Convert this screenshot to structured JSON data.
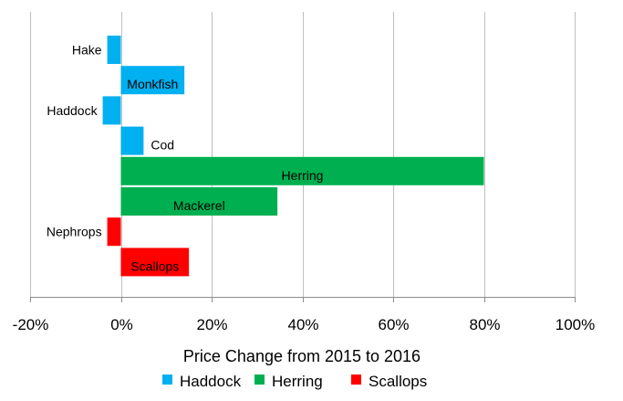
{
  "chart_data": {
    "type": "bar",
    "orientation": "horizontal",
    "xlabel": "Price Change from 2015 to 2016",
    "ylabel": "",
    "title": "",
    "xlim": [
      -20,
      100
    ],
    "x_ticks": [
      "-20%",
      "0%",
      "20%",
      "40%",
      "60%",
      "80%",
      "100%"
    ],
    "grid": "vertical",
    "legend_position": "bottom",
    "groups": [
      {
        "name": "Haddock",
        "color": "#00b0f0"
      },
      {
        "name": "Herring",
        "color": "#00b050"
      },
      {
        "name": "Scallops",
        "color": "#ff0000"
      }
    ],
    "bars": [
      {
        "label": "Hake",
        "value": -3,
        "group": "Haddock"
      },
      {
        "label": "Monkfish",
        "value": 14,
        "group": "Haddock"
      },
      {
        "label": "Haddock",
        "value": -4,
        "group": "Haddock"
      },
      {
        "label": "Cod",
        "value": 5,
        "group": "Haddock"
      },
      {
        "label": "Herring",
        "value": 80,
        "group": "Herring"
      },
      {
        "label": "Mackerel",
        "value": 34.5,
        "group": "Herring"
      },
      {
        "label": "Nephrops",
        "value": -3,
        "group": "Scallops"
      },
      {
        "label": "Scallops",
        "value": 15,
        "group": "Scallops"
      }
    ]
  }
}
